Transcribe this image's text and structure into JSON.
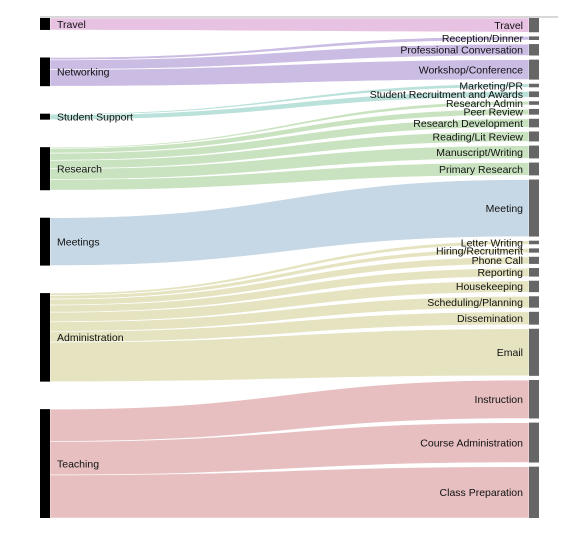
{
  "diagram": {
    "type": "sankey",
    "colors": {
      "Travel": "#e7bfe0",
      "Networking": "#c8b8e3",
      "Student Support": "#b6dfd8",
      "Research": "#c6e2bd",
      "Meetings": "#c3d5e4",
      "Administration": "#e4e2bd",
      "Teaching": "#e6bcbd"
    },
    "sources": [
      {
        "label": "Travel"
      },
      {
        "label": "Networking"
      },
      {
        "label": "Student Support"
      },
      {
        "label": "Research"
      },
      {
        "label": "Meetings"
      },
      {
        "label": "Administration"
      },
      {
        "label": "Teaching"
      }
    ],
    "targets": [
      {
        "label": "Travel"
      },
      {
        "label": "Reception/Dinner"
      },
      {
        "label": "Professional Conversation"
      },
      {
        "label": "Workshop/Conference"
      },
      {
        "label": "Marketing/PR"
      },
      {
        "label": "Student Recruitment and Awards"
      },
      {
        "label": "Research Admin"
      },
      {
        "label": "Peer Review"
      },
      {
        "label": "Research Development"
      },
      {
        "label": "Reading/Lit Review"
      },
      {
        "label": "Manuscript/Writing"
      },
      {
        "label": "Primary Research"
      },
      {
        "label": "Meeting"
      },
      {
        "label": "Letter Writing"
      },
      {
        "label": "Hiring/Recruitment"
      },
      {
        "label": "Phone Call"
      },
      {
        "label": "Reporting"
      },
      {
        "label": "Housekeeping"
      },
      {
        "label": "Scheduling/Planning"
      },
      {
        "label": "Dissemination"
      },
      {
        "label": "Email"
      },
      {
        "label": "Instruction"
      },
      {
        "label": "Course Administration"
      },
      {
        "label": "Class Preparation"
      }
    ],
    "links": [
      {
        "source": "Travel",
        "target": "Travel",
        "value": 10
      },
      {
        "source": "Networking",
        "target": "Reception/Dinner",
        "value": 2
      },
      {
        "source": "Networking",
        "target": "Professional Conversation",
        "value": 8
      },
      {
        "source": "Networking",
        "target": "Workshop/Conference",
        "value": 14
      },
      {
        "source": "Student Support",
        "target": "Marketing/PR",
        "value": 1
      },
      {
        "source": "Student Support",
        "target": "Student Recruitment and Awards",
        "value": 4
      },
      {
        "source": "Research",
        "target": "Research Admin",
        "value": 1
      },
      {
        "source": "Research",
        "target": "Peer Review",
        "value": 4
      },
      {
        "source": "Research",
        "target": "Research Development",
        "value": 6
      },
      {
        "source": "Research",
        "target": "Reading/Lit Review",
        "value": 7
      },
      {
        "source": "Research",
        "target": "Manuscript/Writing",
        "value": 9
      },
      {
        "source": "Research",
        "target": "Primary Research",
        "value": 9
      },
      {
        "source": "Meetings",
        "target": "Meeting",
        "value": 40
      },
      {
        "source": "Administration",
        "target": "Letter Writing",
        "value": 2
      },
      {
        "source": "Administration",
        "target": "Hiring/Recruitment",
        "value": 3
      },
      {
        "source": "Administration",
        "target": "Phone Call",
        "value": 5
      },
      {
        "source": "Administration",
        "target": "Reporting",
        "value": 6
      },
      {
        "source": "Administration",
        "target": "Housekeeping",
        "value": 8
      },
      {
        "source": "Administration",
        "target": "Scheduling/Planning",
        "value": 8
      },
      {
        "source": "Administration",
        "target": "Dissemination",
        "value": 9
      },
      {
        "source": "Administration",
        "target": "Email",
        "value": 33
      },
      {
        "source": "Teaching",
        "target": "Instruction",
        "value": 27
      },
      {
        "source": "Teaching",
        "target": "Course Administration",
        "value": 28
      },
      {
        "source": "Teaching",
        "target": "Class Preparation",
        "value": 36
      }
    ]
  }
}
